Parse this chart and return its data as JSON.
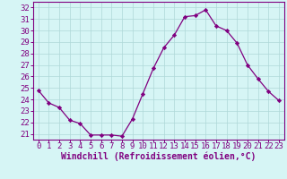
{
  "x": [
    0,
    1,
    2,
    3,
    4,
    5,
    6,
    7,
    8,
    9,
    10,
    11,
    12,
    13,
    14,
    15,
    16,
    17,
    18,
    19,
    20,
    21,
    22,
    23
  ],
  "y": [
    24.8,
    23.7,
    23.3,
    22.2,
    21.9,
    20.9,
    20.9,
    20.9,
    20.8,
    22.3,
    24.5,
    26.7,
    28.5,
    29.6,
    31.2,
    31.3,
    31.8,
    30.4,
    30.0,
    28.9,
    27.0,
    25.8,
    24.7,
    23.9
  ],
  "line_color": "#800080",
  "marker": "D",
  "marker_size": 2.2,
  "bg_color": "#d6f5f5",
  "grid_color": "#aed8d8",
  "xlabel": "Windchill (Refroidissement éolien,°C)",
  "xlabel_color": "#800080",
  "tick_color": "#800080",
  "spine_color": "#800080",
  "ylim": [
    20.5,
    32.5
  ],
  "xlim": [
    -0.5,
    23.5
  ],
  "yticks": [
    21,
    22,
    23,
    24,
    25,
    26,
    27,
    28,
    29,
    30,
    31,
    32
  ],
  "xticks": [
    0,
    1,
    2,
    3,
    4,
    5,
    6,
    7,
    8,
    9,
    10,
    11,
    12,
    13,
    14,
    15,
    16,
    17,
    18,
    19,
    20,
    21,
    22,
    23
  ],
  "font_size": 6.5,
  "xlabel_fontsize": 7.0
}
